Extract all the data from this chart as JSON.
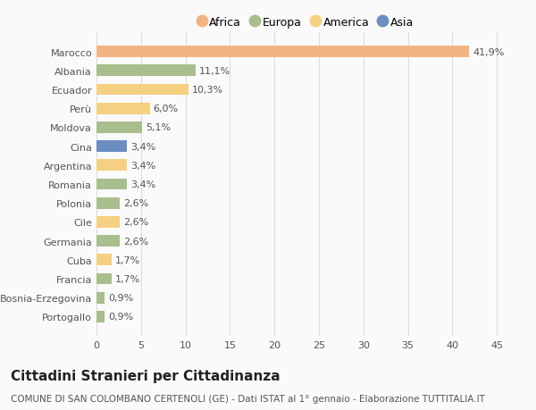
{
  "categories": [
    "Marocco",
    "Albania",
    "Ecuador",
    "Perù",
    "Moldova",
    "Cina",
    "Argentina",
    "Romania",
    "Polonia",
    "Cile",
    "Germania",
    "Cuba",
    "Francia",
    "Bosnia-Erzegovina",
    "Portogallo"
  ],
  "values": [
    41.9,
    11.1,
    10.3,
    6.0,
    5.1,
    3.4,
    3.4,
    3.4,
    2.6,
    2.6,
    2.6,
    1.7,
    1.7,
    0.9,
    0.9
  ],
  "labels": [
    "41,9%",
    "11,1%",
    "10,3%",
    "6,0%",
    "5,1%",
    "3,4%",
    "3,4%",
    "3,4%",
    "2,6%",
    "2,6%",
    "2,6%",
    "1,7%",
    "1,7%",
    "0,9%",
    "0,9%"
  ],
  "continent": [
    "Africa",
    "Europa",
    "America",
    "America",
    "Europa",
    "Asia",
    "America",
    "Europa",
    "Europa",
    "America",
    "Europa",
    "America",
    "Europa",
    "Europa",
    "Europa"
  ],
  "colors": {
    "Africa": "#F2B482",
    "Europa": "#A8BE8C",
    "America": "#F5D080",
    "Asia": "#6B8EC2"
  },
  "legend_order": [
    "Africa",
    "Europa",
    "America",
    "Asia"
  ],
  "xlim": [
    0,
    47
  ],
  "xticks": [
    0,
    5,
    10,
    15,
    20,
    25,
    30,
    35,
    40,
    45
  ],
  "title": "Cittadini Stranieri per Cittadinanza",
  "subtitle": "COMUNE DI SAN COLOMBANO CERTENOLI (GE) - Dati ISTAT al 1° gennaio - Elaborazione TUTTITALIA.IT",
  "background_color": "#FAFAFA",
  "grid_color": "#DDDDDD",
  "bar_alpha": 1.0,
  "title_fontsize": 11,
  "subtitle_fontsize": 7.5,
  "label_fontsize": 8,
  "tick_fontsize": 8,
  "legend_fontsize": 9
}
